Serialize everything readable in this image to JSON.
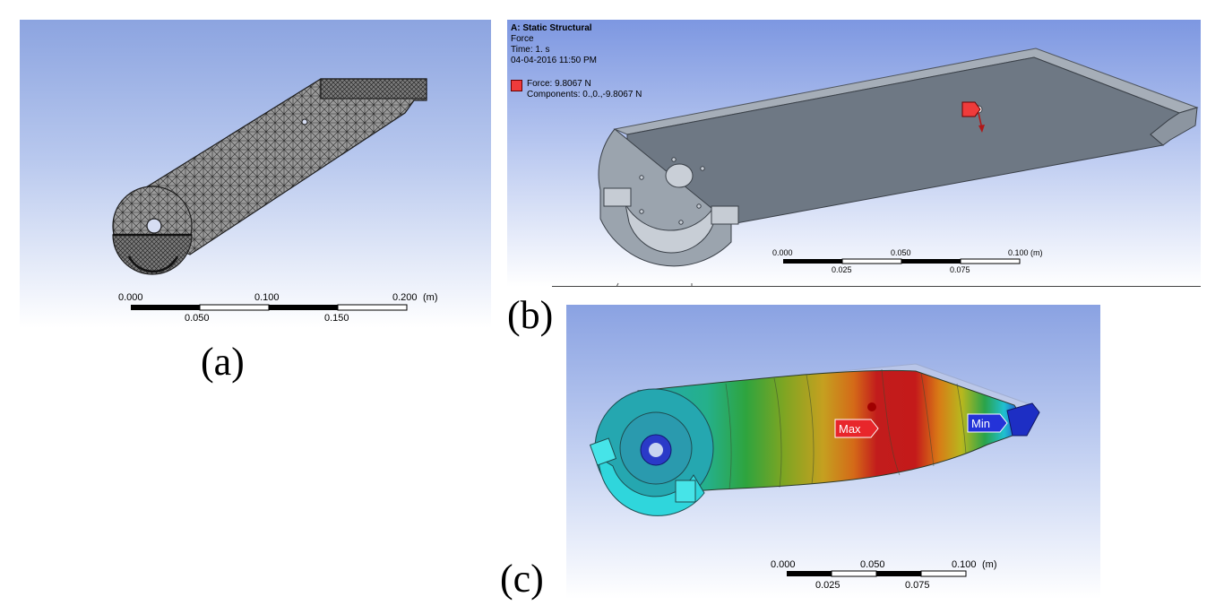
{
  "panels": {
    "a": {
      "label": "(a)",
      "scale": {
        "top_labels": [
          "0.000",
          "0.100",
          "0.200"
        ],
        "bottom_labels": [
          "0.050",
          "0.150"
        ],
        "unit": "(m)"
      }
    },
    "b": {
      "label": "(b)",
      "info": {
        "title": "A: Static Structural",
        "name": "Force",
        "time": "Time: 1. s",
        "date": "04-04-2016 11:50 PM",
        "legend_force": "Force: 9.8067 N",
        "legend_components": "Components: 0.,0.,-9.8067 N"
      },
      "scale": {
        "top_labels": [
          "0.000",
          "0.050",
          "0.100"
        ],
        "bottom_labels": [
          "0.025",
          "0.075"
        ],
        "unit": "(m)"
      }
    },
    "c": {
      "label": "(c)",
      "markers": {
        "max": "Max",
        "min": "Min"
      },
      "scale": {
        "top_labels": [
          "0.000",
          "0.050",
          "0.100"
        ],
        "bottom_labels": [
          "0.025",
          "0.075"
        ],
        "unit": "(m)"
      }
    }
  },
  "colors": {
    "mesh_fill": "#8c8c8c",
    "part_gray": "#707a86",
    "max_marker": "#e8262b",
    "min_marker": "#2433d8",
    "force_swatch": "#ef3b3b"
  }
}
